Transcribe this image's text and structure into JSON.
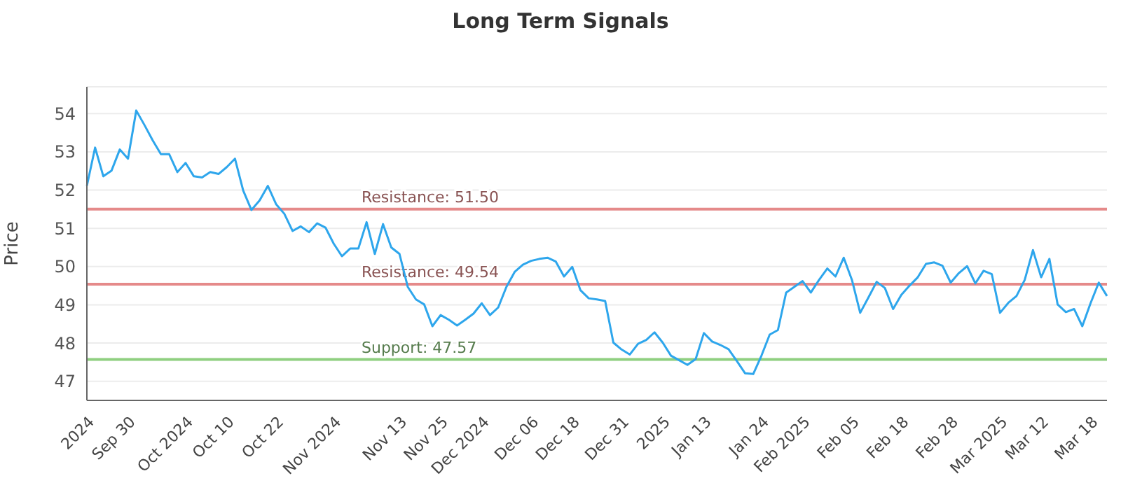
{
  "chart_data": {
    "type": "line",
    "title": "Long Term Signals",
    "ylabel": "Price",
    "categories": [
      null,
      "2024",
      null,
      null,
      null,
      null,
      "Sep 30",
      null,
      null,
      null,
      null,
      null,
      null,
      "Oct 2024",
      null,
      null,
      null,
      null,
      "Oct 10",
      null,
      null,
      null,
      null,
      null,
      "Oct 22",
      null,
      null,
      null,
      null,
      null,
      null,
      "Nov 2024",
      null,
      null,
      null,
      null,
      null,
      null,
      null,
      "Nov 13",
      null,
      null,
      null,
      null,
      "Nov 25",
      null,
      null,
      null,
      null,
      "Dec 2024",
      null,
      null,
      null,
      null,
      null,
      "Dec 06",
      null,
      null,
      null,
      null,
      "Dec 18",
      null,
      null,
      null,
      null,
      null,
      "Dec 31",
      null,
      null,
      null,
      null,
      "2025",
      null,
      null,
      null,
      null,
      "Jan 13",
      null,
      null,
      null,
      null,
      null,
      null,
      "Jan 24",
      null,
      null,
      null,
      null,
      "Feb 2025",
      null,
      null,
      null,
      null,
      null,
      "Feb 05",
      null,
      null,
      null,
      null,
      null,
      "Feb 18",
      null,
      null,
      null,
      null,
      null,
      "Feb 28",
      null,
      null,
      null,
      null,
      null,
      "Mar 2025",
      null,
      null,
      null,
      null,
      "Mar 12",
      null,
      null,
      null,
      null,
      null,
      "Mar 18",
      null
    ],
    "series": [
      {
        "color": "#2ea6ec",
        "values": [
          52.11,
          53.11,
          52.36,
          52.51,
          53.06,
          52.82,
          54.08,
          53.7,
          53.3,
          52.94,
          52.94,
          52.47,
          52.71,
          52.36,
          52.33,
          52.47,
          52.42,
          52.6,
          52.82,
          51.99,
          51.48,
          51.73,
          52.11,
          51.63,
          51.38,
          50.93,
          51.05,
          50.9,
          51.13,
          51.02,
          50.6,
          50.27,
          50.47,
          50.47,
          51.16,
          50.33,
          51.11,
          50.5,
          50.33,
          49.47,
          49.14,
          49.01,
          48.44,
          48.73,
          48.61,
          48.46,
          48.61,
          48.77,
          49.04,
          48.73,
          48.93,
          49.47,
          49.86,
          50.05,
          50.15,
          50.2,
          50.23,
          50.13,
          49.74,
          49.99,
          49.38,
          49.17,
          49.14,
          49.1,
          48.01,
          47.83,
          47.7,
          47.98,
          48.08,
          48.28,
          48.01,
          47.67,
          47.55,
          47.43,
          47.58,
          48.26,
          48.04,
          47.95,
          47.84,
          47.53,
          47.21,
          47.19,
          47.67,
          48.22,
          48.34,
          49.32,
          49.47,
          49.62,
          49.32,
          49.65,
          49.95,
          49.74,
          50.23,
          49.65,
          48.79,
          49.19,
          49.6,
          49.44,
          48.89,
          49.26,
          49.5,
          49.72,
          50.07,
          50.11,
          50.02,
          49.58,
          49.83,
          50.01,
          49.56,
          49.89,
          49.8,
          48.79,
          49.05,
          49.23,
          49.65,
          50.43,
          49.72,
          50.2,
          49.01,
          48.81,
          48.89,
          48.44,
          49.04,
          49.58,
          49.23
        ]
      }
    ],
    "ylim": [
      46.5,
      54.7
    ],
    "yticks": [
      47,
      48,
      49,
      50,
      51,
      52,
      53,
      54
    ],
    "grid": "y",
    "marker": "none",
    "line_style": "solid",
    "ref_lines": [
      {
        "axis": "y",
        "value": 51.5,
        "label": "Resistance: 51.50",
        "color": "#e58a8a"
      },
      {
        "axis": "y",
        "value": 49.54,
        "label": "Resistance: 49.54",
        "color": "#e58a8a"
      },
      {
        "axis": "y",
        "value": 47.57,
        "label": "Support: 47.57",
        "color": "#8fcf80"
      }
    ]
  }
}
